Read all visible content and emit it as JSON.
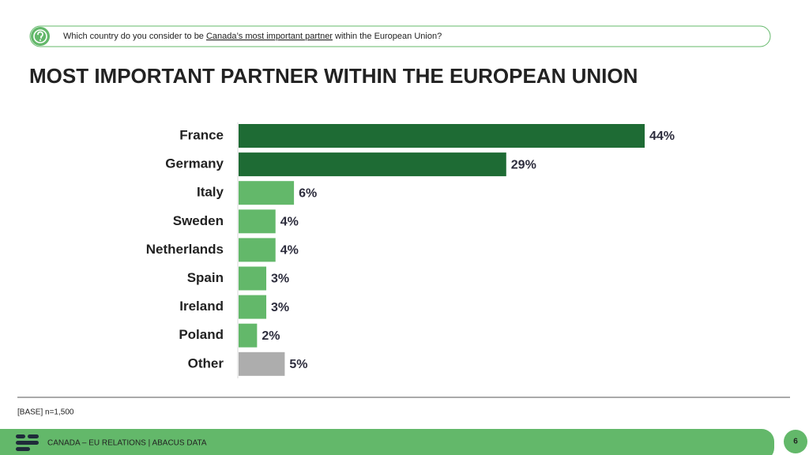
{
  "question": {
    "parts": [
      "Which country do you consider to be ",
      "Canada’s most important partner",
      " within the European Union?"
    ]
  },
  "chart_data": {
    "type": "bar",
    "title": "MOST IMPORTANT PARTNER WITHIN THE EUROPEAN UNION",
    "categories": [
      "France",
      "Germany",
      "Italy",
      "Sweden",
      "Netherlands",
      "Spain",
      "Ireland",
      "Poland",
      "Other"
    ],
    "values": [
      44,
      29,
      6,
      4,
      4,
      3,
      3,
      2,
      5
    ],
    "value_labels": [
      "44%",
      "29%",
      "6%",
      "4%",
      "4%",
      "3%",
      "3%",
      "2%",
      "5%"
    ],
    "colors": [
      "#1e6b34",
      "#1e6b34",
      "#63b86a",
      "#63b86a",
      "#63b86a",
      "#63b86a",
      "#63b86a",
      "#63b86a",
      "#adadad"
    ]
  },
  "base_note": "[BASE] n=1,500",
  "footer": {
    "text": "CANADA – EU RELATIONS  |  ABACUS DATA",
    "page_number": "6"
  }
}
